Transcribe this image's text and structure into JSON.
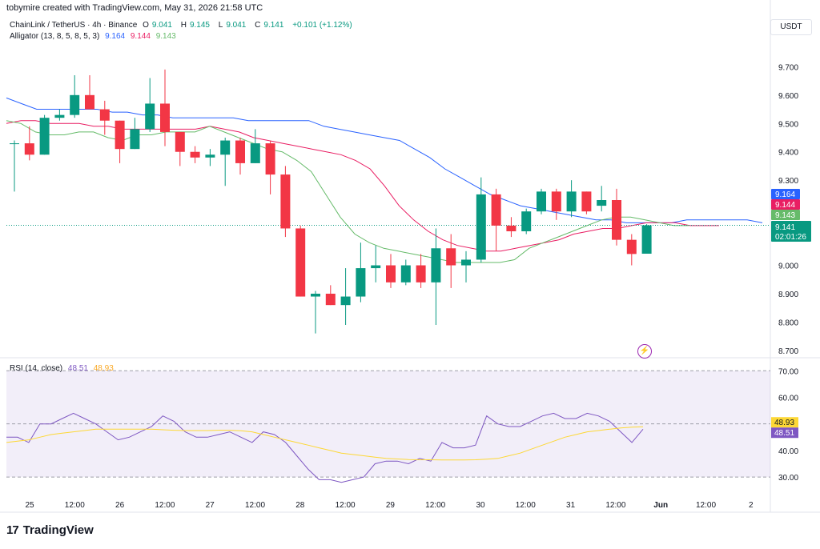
{
  "header": {
    "text": "tobymire created with TradingView.com, May 31, 2026 21:58 UTC"
  },
  "symbol": {
    "title": "ChainLink / TetherUS · 4h · Binance",
    "open_label": "O",
    "open": "9.041",
    "high_label": "H",
    "high": "9.145",
    "low_label": "L",
    "low": "9.041",
    "close_label": "C",
    "close": "9.141",
    "change": "+0.101 (+1.12%)"
  },
  "alligator": {
    "label": "Alligator (13, 8, 5, 8, 5, 3)",
    "jaw": "9.164",
    "teeth": "9.144",
    "lips": "9.143"
  },
  "currency": "USDT",
  "last_price_tag": {
    "price": "9.141",
    "countdown": "02:01:26"
  },
  "rsi": {
    "label": "RSI (14, close)",
    "value": "48.51",
    "ma": "48.93"
  },
  "brand": {
    "mark": "17",
    "name": "TradingView"
  },
  "colors": {
    "up": "#089981",
    "down": "#f23645",
    "jaw": "#2962ff",
    "teeth": "#e91e63",
    "lips": "#66bb6a",
    "rsi": "#7e57c2",
    "rsi_ma": "#fdd835"
  },
  "chart_data": [
    {
      "type": "candlestick",
      "title": "ChainLink / TetherUS · 4h · Binance",
      "x_tick_labels": [
        "25",
        "12:00",
        "26",
        "12:00",
        "27",
        "12:00",
        "28",
        "12:00",
        "29",
        "12:00",
        "30",
        "12:00",
        "31",
        "12:00",
        "Jun",
        "12:00",
        "2"
      ],
      "y_tick_labels": [
        "9.700",
        "9.600",
        "9.500",
        "9.400",
        "9.300",
        "9.200",
        "9.100",
        "9.000",
        "8.900",
        "8.800",
        "8.700"
      ],
      "ylim": [
        8.68,
        9.78
      ],
      "candles": [
        {
          "o": 9.43,
          "h": 9.44,
          "l": 9.26,
          "c": 9.43
        },
        {
          "o": 9.43,
          "h": 9.49,
          "l": 9.37,
          "c": 9.39
        },
        {
          "o": 9.39,
          "h": 9.53,
          "l": 9.39,
          "c": 9.52
        },
        {
          "o": 9.52,
          "h": 9.55,
          "l": 9.51,
          "c": 9.53
        },
        {
          "o": 9.53,
          "h": 9.67,
          "l": 9.52,
          "c": 9.6
        },
        {
          "o": 9.6,
          "h": 9.67,
          "l": 9.55,
          "c": 9.55
        },
        {
          "o": 9.55,
          "h": 9.58,
          "l": 9.46,
          "c": 9.51
        },
        {
          "o": 9.51,
          "h": 9.51,
          "l": 9.36,
          "c": 9.41
        },
        {
          "o": 9.41,
          "h": 9.52,
          "l": 9.41,
          "c": 9.48
        },
        {
          "o": 9.48,
          "h": 9.66,
          "l": 9.47,
          "c": 9.57
        },
        {
          "o": 9.57,
          "h": 9.69,
          "l": 9.42,
          "c": 9.47
        },
        {
          "o": 9.47,
          "h": 9.47,
          "l": 9.35,
          "c": 9.4
        },
        {
          "o": 9.4,
          "h": 9.42,
          "l": 9.36,
          "c": 9.38
        },
        {
          "o": 9.38,
          "h": 9.41,
          "l": 9.35,
          "c": 9.39
        },
        {
          "o": 9.39,
          "h": 9.45,
          "l": 9.28,
          "c": 9.44
        },
        {
          "o": 9.44,
          "h": 9.45,
          "l": 9.32,
          "c": 9.36
        },
        {
          "o": 9.36,
          "h": 9.48,
          "l": 9.36,
          "c": 9.43
        },
        {
          "o": 9.43,
          "h": 9.44,
          "l": 9.25,
          "c": 9.32
        },
        {
          "o": 9.32,
          "h": 9.35,
          "l": 9.1,
          "c": 9.13
        },
        {
          "o": 9.13,
          "h": 9.14,
          "l": 8.89,
          "c": 8.89
        },
        {
          "o": 8.89,
          "h": 8.91,
          "l": 8.76,
          "c": 8.9
        },
        {
          "o": 8.9,
          "h": 8.93,
          "l": 8.86,
          "c": 8.86
        },
        {
          "o": 8.86,
          "h": 8.99,
          "l": 8.79,
          "c": 8.89
        },
        {
          "o": 8.89,
          "h": 9.08,
          "l": 8.87,
          "c": 8.99
        },
        {
          "o": 8.99,
          "h": 9.07,
          "l": 8.94,
          "c": 9.0
        },
        {
          "o": 9.0,
          "h": 9.04,
          "l": 8.92,
          "c": 8.94
        },
        {
          "o": 8.94,
          "h": 9.02,
          "l": 8.93,
          "c": 9.0
        },
        {
          "o": 9.0,
          "h": 9.04,
          "l": 8.92,
          "c": 8.94
        },
        {
          "o": 8.94,
          "h": 9.13,
          "l": 8.79,
          "c": 9.06
        },
        {
          "o": 9.06,
          "h": 9.11,
          "l": 8.92,
          "c": 9.0
        },
        {
          "o": 9.0,
          "h": 9.05,
          "l": 8.94,
          "c": 9.02
        },
        {
          "o": 9.02,
          "h": 9.31,
          "l": 9.01,
          "c": 9.25
        },
        {
          "o": 9.25,
          "h": 9.27,
          "l": 9.05,
          "c": 9.14
        },
        {
          "o": 9.14,
          "h": 9.17,
          "l": 9.1,
          "c": 9.12
        },
        {
          "o": 9.12,
          "h": 9.2,
          "l": 9.11,
          "c": 9.19
        },
        {
          "o": 9.19,
          "h": 9.27,
          "l": 9.18,
          "c": 9.26
        },
        {
          "o": 9.26,
          "h": 9.27,
          "l": 9.16,
          "c": 9.19
        },
        {
          "o": 9.19,
          "h": 9.3,
          "l": 9.17,
          "c": 9.26
        },
        {
          "o": 9.26,
          "h": 9.26,
          "l": 9.18,
          "c": 9.19
        },
        {
          "o": 9.21,
          "h": 9.28,
          "l": 9.19,
          "c": 9.23
        },
        {
          "o": 9.23,
          "h": 9.27,
          "l": 9.07,
          "c": 9.09
        },
        {
          "o": 9.09,
          "h": 9.11,
          "l": 9.0,
          "c": 9.04
        },
        {
          "o": 9.041,
          "h": 9.145,
          "l": 9.041,
          "c": 9.141
        }
      ],
      "series": [
        {
          "name": "Jaw",
          "values": [
            9.59,
            9.57,
            9.55,
            9.55,
            9.55,
            9.55,
            9.55,
            9.54,
            9.54,
            9.53,
            9.53,
            9.52,
            9.52,
            9.52,
            9.52,
            9.52,
            9.51,
            9.51,
            9.51,
            9.51,
            9.51,
            9.49,
            9.48,
            9.47,
            9.46,
            9.45,
            9.44,
            9.41,
            9.38,
            9.34,
            9.31,
            9.28,
            9.25,
            9.23,
            9.21,
            9.2,
            9.19,
            9.18,
            9.17,
            9.16,
            9.16,
            9.15,
            9.15,
            9.15,
            9.15,
            9.16,
            9.16,
            9.16,
            9.16,
            9.16,
            9.15
          ]
        },
        {
          "name": "Teeth",
          "values": [
            9.5,
            9.51,
            9.51,
            9.5,
            9.5,
            9.5,
            9.49,
            9.49,
            9.48,
            9.48,
            9.48,
            9.48,
            9.48,
            9.48,
            9.49,
            9.48,
            9.47,
            9.45,
            9.44,
            9.43,
            9.42,
            9.41,
            9.4,
            9.39,
            9.37,
            9.34,
            9.28,
            9.21,
            9.16,
            9.12,
            9.09,
            9.07,
            9.06,
            9.05,
            9.05,
            9.06,
            9.07,
            9.08,
            9.09,
            9.11,
            9.12,
            9.13,
            9.13,
            9.14,
            9.15,
            9.15,
            9.15,
            9.14,
            9.14,
            9.14
          ]
        },
        {
          "name": "Lips",
          "values": [
            9.51,
            9.5,
            9.47,
            9.46,
            9.46,
            9.47,
            9.47,
            9.45,
            9.44,
            9.46,
            9.46,
            9.47,
            9.47,
            9.47,
            9.49,
            9.47,
            9.45,
            9.43,
            9.41,
            9.4,
            9.37,
            9.33,
            9.25,
            9.17,
            9.11,
            9.08,
            9.06,
            9.05,
            9.04,
            9.03,
            9.02,
            9.01,
            9.01,
            9.01,
            9.01,
            9.02,
            9.06,
            9.08,
            9.1,
            9.12,
            9.14,
            9.16,
            9.17,
            9.17,
            9.16,
            9.15,
            9.14,
            9.14
          ]
        }
      ]
    },
    {
      "type": "line",
      "title": "RSI (14, close)",
      "y_tick_labels": [
        "70.00",
        "60.00",
        "50.00",
        "40.00",
        "30.00"
      ],
      "ylim": [
        24,
        74
      ],
      "bands": [
        70,
        50,
        30
      ],
      "series": [
        {
          "name": "RSI",
          "values": [
            45,
            45,
            43,
            50,
            50,
            52,
            54,
            52,
            50,
            47,
            44,
            45,
            47,
            49,
            53,
            51,
            47,
            45,
            45,
            46,
            47,
            45,
            43,
            47,
            46,
            43,
            38,
            33,
            29,
            29,
            28,
            29,
            30,
            35,
            36,
            36,
            35,
            37,
            36,
            43,
            41,
            41,
            42,
            53,
            50,
            49,
            49,
            51,
            53,
            54,
            52,
            52,
            54,
            53,
            51,
            47,
            43,
            48
          ]
        },
        {
          "name": "RSI MA",
          "values": [
            43,
            43.5,
            44,
            45,
            46,
            46.5,
            47,
            47.5,
            48,
            48,
            48,
            48,
            48,
            48,
            47.8,
            47.6,
            47.5,
            47.5,
            47.5,
            47.6,
            47.6,
            47.4,
            47,
            46,
            45,
            44,
            43,
            42,
            41,
            40,
            39,
            38.5,
            38,
            37.5,
            37,
            36.8,
            36.6,
            36.5,
            36.5,
            36.4,
            36.4,
            36.4,
            36.5,
            36.7,
            37,
            38,
            39,
            40.5,
            42,
            43.5,
            45,
            46,
            47,
            47.5,
            48,
            48.5,
            48.8,
            48.93
          ]
        }
      ]
    }
  ]
}
